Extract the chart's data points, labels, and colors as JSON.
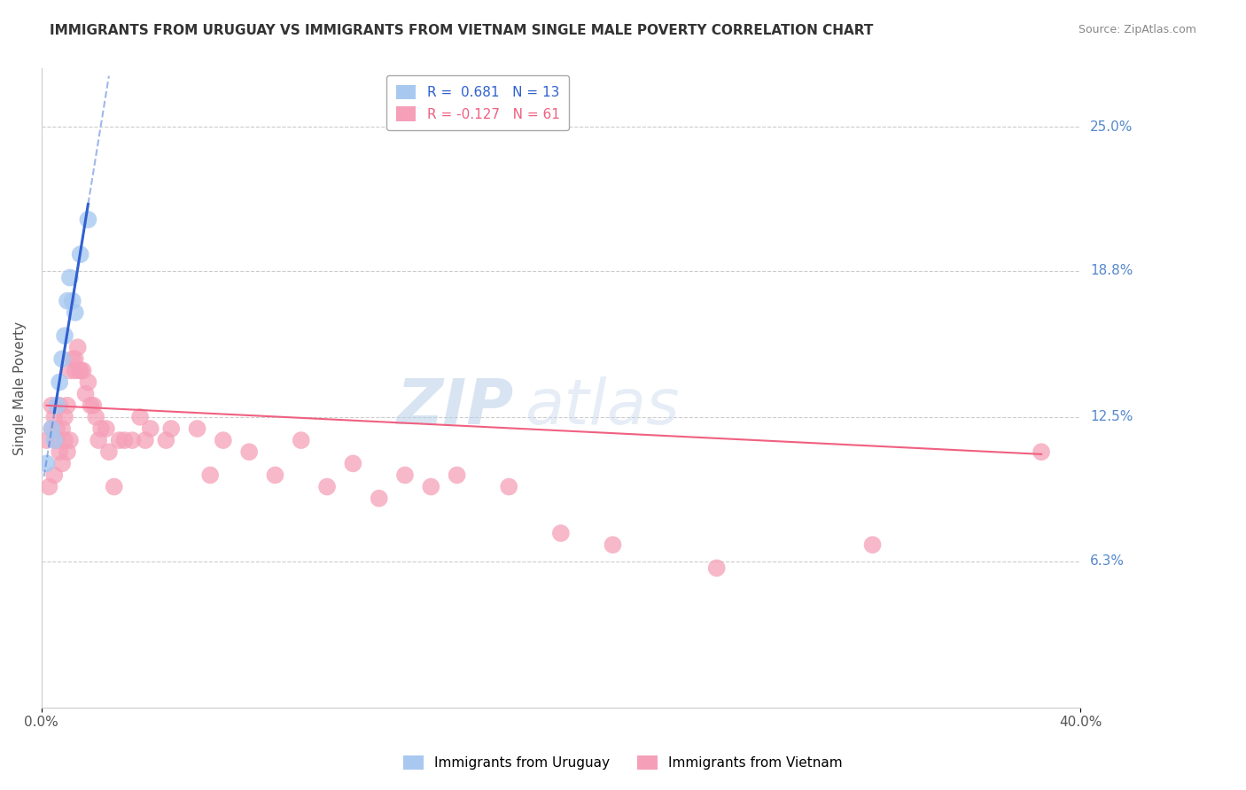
{
  "title": "IMMIGRANTS FROM URUGUAY VS IMMIGRANTS FROM VIETNAM SINGLE MALE POVERTY CORRELATION CHART",
  "source": "Source: ZipAtlas.com",
  "ylabel": "Single Male Poverty",
  "xlim": [
    0.0,
    0.4
  ],
  "ylim": [
    0.0,
    0.275
  ],
  "ytick_values": [
    0.063,
    0.125,
    0.188,
    0.25
  ],
  "ytick_labels": [
    "6.3%",
    "12.5%",
    "18.8%",
    "25.0%"
  ],
  "legend_uruguay": "R =  0.681   N = 13",
  "legend_vietnam": "R = -0.127   N = 61",
  "uruguay_color": "#a8c8f0",
  "vietnam_color": "#f5a0b8",
  "uruguay_line_color": "#3060d0",
  "vietnam_line_color": "#f06080",
  "background_color": "#ffffff",
  "grid_color": "#cccccc",
  "uruguay_x": [
    0.002,
    0.004,
    0.005,
    0.006,
    0.007,
    0.008,
    0.009,
    0.01,
    0.011,
    0.012,
    0.013,
    0.015,
    0.018
  ],
  "uruguay_y": [
    0.105,
    0.12,
    0.115,
    0.13,
    0.14,
    0.15,
    0.16,
    0.175,
    0.185,
    0.175,
    0.17,
    0.195,
    0.21
  ],
  "vietnam_x": [
    0.002,
    0.003,
    0.004,
    0.004,
    0.005,
    0.005,
    0.006,
    0.006,
    0.007,
    0.007,
    0.008,
    0.008,
    0.009,
    0.009,
    0.01,
    0.01,
    0.011,
    0.011,
    0.012,
    0.013,
    0.013,
    0.014,
    0.015,
    0.015,
    0.016,
    0.017,
    0.018,
    0.019,
    0.02,
    0.021,
    0.022,
    0.023,
    0.025,
    0.026,
    0.028,
    0.03,
    0.032,
    0.035,
    0.038,
    0.04,
    0.042,
    0.048,
    0.05,
    0.06,
    0.065,
    0.07,
    0.08,
    0.09,
    0.1,
    0.11,
    0.12,
    0.13,
    0.14,
    0.15,
    0.16,
    0.18,
    0.2,
    0.22,
    0.26,
    0.32,
    0.385
  ],
  "vietnam_y": [
    0.115,
    0.095,
    0.12,
    0.13,
    0.1,
    0.125,
    0.115,
    0.12,
    0.11,
    0.13,
    0.105,
    0.12,
    0.115,
    0.125,
    0.11,
    0.13,
    0.115,
    0.145,
    0.15,
    0.15,
    0.145,
    0.155,
    0.145,
    0.145,
    0.145,
    0.135,
    0.14,
    0.13,
    0.13,
    0.125,
    0.115,
    0.12,
    0.12,
    0.11,
    0.095,
    0.115,
    0.115,
    0.115,
    0.125,
    0.115,
    0.12,
    0.115,
    0.12,
    0.12,
    0.1,
    0.115,
    0.11,
    0.1,
    0.115,
    0.095,
    0.105,
    0.09,
    0.1,
    0.095,
    0.1,
    0.095,
    0.075,
    0.07,
    0.06,
    0.07,
    0.11
  ],
  "vietnam_line_start_x": 0.002,
  "vietnam_line_end_x": 0.385,
  "vietnam_line_start_y": 0.13,
  "vietnam_line_end_y": 0.109,
  "uruguay_line_solid_x1": 0.005,
  "uruguay_line_solid_x2": 0.018,
  "uruguay_line_dash_x1": 0.001,
  "uruguay_line_dash_x2": 0.005,
  "uruguay_line_ext_x1": 0.018,
  "uruguay_line_ext_x2": 0.026
}
